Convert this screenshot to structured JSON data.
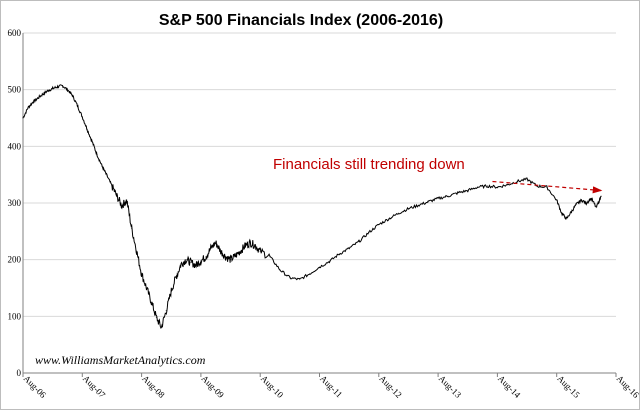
{
  "chart_data": {
    "type": "line",
    "title": "S&P 500 Financials Index (2006-2016)",
    "xlabel": "",
    "ylabel": "",
    "ylim": [
      0,
      600
    ],
    "yticks": [
      0,
      100,
      200,
      300,
      400,
      500,
      600
    ],
    "ytick_labels": [
      "0",
      "100",
      "200",
      "300",
      "400",
      "500",
      "600"
    ],
    "xtick_labels": [
      "Aug-06",
      "Aug-07",
      "Aug-08",
      "Aug-09",
      "Aug-10",
      "Aug-11",
      "Aug-12",
      "Aug-13",
      "Aug-14",
      "Aug-15",
      "Aug-16"
    ],
    "xlim": [
      0,
      120
    ],
    "grid": "horizontal",
    "line_color": "#000000",
    "x": [
      0,
      1,
      2,
      3,
      4,
      5,
      6,
      7,
      8,
      9,
      10,
      11,
      12,
      13,
      14,
      15,
      16,
      17,
      18,
      19,
      20,
      21,
      22,
      23,
      24,
      25,
      26,
      27,
      28,
      29,
      30,
      31,
      32,
      33,
      34,
      35,
      36,
      37,
      38,
      39,
      40,
      41,
      42,
      43,
      44,
      45,
      46,
      47,
      48,
      50,
      52,
      54,
      56,
      58,
      60,
      62,
      64,
      66,
      68,
      70,
      72,
      74,
      76,
      78,
      80,
      82,
      84,
      86,
      88,
      90,
      92,
      94,
      96,
      98,
      100,
      102,
      104,
      106,
      108,
      109,
      110,
      111,
      112,
      113,
      114,
      115,
      116,
      117
    ],
    "values": [
      450,
      468,
      478,
      485,
      492,
      498,
      502,
      505,
      507,
      500,
      490,
      472,
      452,
      430,
      408,
      385,
      365,
      348,
      330,
      312,
      295,
      305,
      255,
      215,
      175,
      150,
      125,
      98,
      80,
      110,
      145,
      170,
      192,
      200,
      195,
      190,
      198,
      205,
      220,
      230,
      215,
      205,
      200,
      207,
      215,
      225,
      230,
      225,
      215,
      205,
      182,
      168,
      165,
      175,
      187,
      197,
      210,
      220,
      232,
      248,
      262,
      272,
      282,
      290,
      296,
      302,
      308,
      312,
      318,
      322,
      328,
      330,
      328,
      332,
      338,
      342,
      330,
      328,
      305,
      282,
      272,
      285,
      298,
      305,
      300,
      308,
      292,
      312
    ],
    "annotation": {
      "text": "Financials still trending down",
      "color": "#c00000",
      "arrow_from": [
        95,
        338
      ],
      "arrow_to": [
        117,
        322
      ]
    },
    "watermark": "www.WilliamsMarketAnalytics.com"
  }
}
